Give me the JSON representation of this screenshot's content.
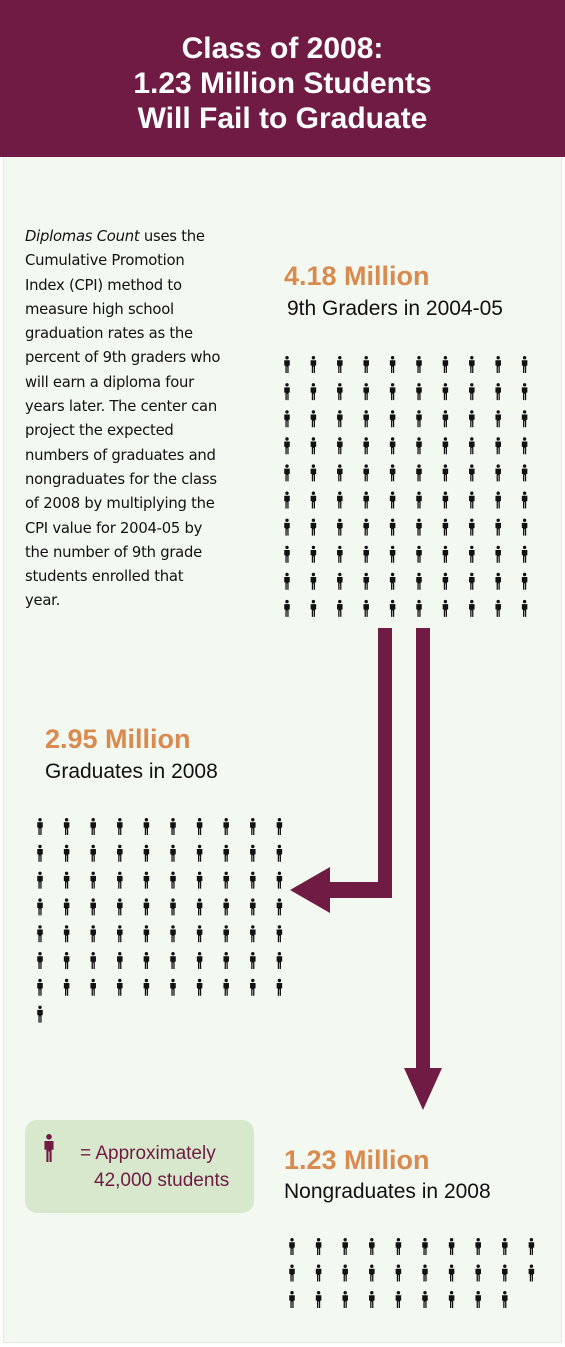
{
  "header": {
    "title_lines": [
      "Class of 2008:",
      "1.23 Million Students",
      "Will Fail to Graduate"
    ]
  },
  "description": {
    "italic_lead": "Diplomas Count",
    "lines": [
      " uses the",
      "Cumulative Promotion",
      "Index (CPI) method to",
      "measure high school",
      "graduation rates as the",
      "percent of 9th graders who",
      "will earn a diploma four",
      "years later. The center can",
      "project the expected",
      "numbers of graduates and",
      "nongraduates for the class",
      "of 2008 by multiplying the",
      "CPI value for 2004-05 by",
      "the number of 9th grade",
      "students enrolled that",
      "year."
    ]
  },
  "chart_data": {
    "type": "pictograph",
    "unit_value": 42000,
    "unit_label": "= Approximately 42,000 students",
    "groups": [
      {
        "value_label": "4.18 Million",
        "label": "9th Graders in 2004-05",
        "value_millions": 4.18,
        "icons": 100
      },
      {
        "value_label": "2.95 Million",
        "label": "Graduates in 2008",
        "value_millions": 2.95,
        "icons": 71
      },
      {
        "value_label": "1.23 Million",
        "label": "Nongraduates in 2008",
        "value_millions": 1.23,
        "icons": 29
      }
    ]
  },
  "legend": {
    "line1": "= Approximately",
    "line2": "42,000 students",
    "icon": "person-icon"
  },
  "colors": {
    "header_bg": "#6f1b44",
    "arrow": "#6f1b44",
    "figure_value": "#d98b4f",
    "background": "#f3f8f1",
    "legend_bg": "#d8e8cd",
    "person_icon": "#111111"
  }
}
